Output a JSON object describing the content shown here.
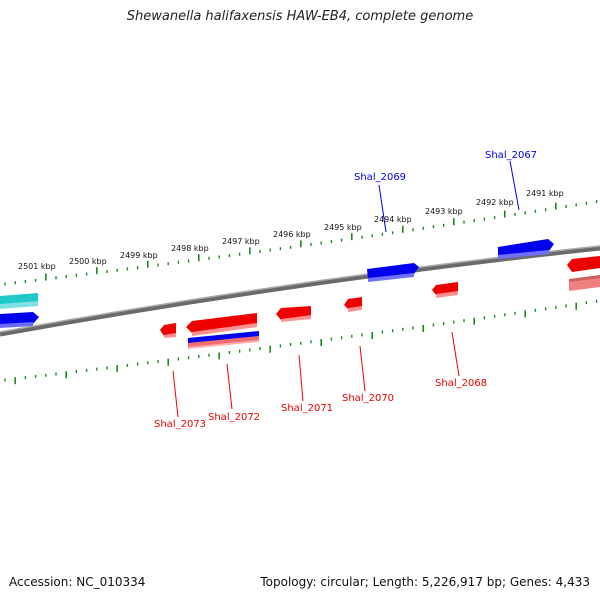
{
  "title": "Shewanella halifaxensis HAW-EB4, complete genome",
  "footer": {
    "accession": "Accession: NC_010334",
    "summary": "Topology: circular; Length: 5,226,917 bp; Genes: 4,433"
  },
  "colors": {
    "forward_gene": "#0000ff",
    "reverse_gene": "#ff0000",
    "reverse_gene_light": "#f08080",
    "rna_gene": "#20c8c8",
    "scale_ticks": "#1a8a1a",
    "backbone": "#808080"
  },
  "scale": {
    "unit": "kbp",
    "labels": [
      "2501 kbp",
      "2500 kbp",
      "2499 kbp",
      "2498 kbp",
      "2497 kbp",
      "2496 kbp",
      "2495 kbp",
      "2494 kbp",
      "2493 kbp",
      "2492 kbp",
      "2491 kbp"
    ]
  },
  "genes": {
    "forward": [
      "Shal_2069",
      "Shal_2067"
    ],
    "reverse": [
      "Shal_2073",
      "Shal_2072",
      "Shal_2071",
      "Shal_2070",
      "Shal_2068"
    ]
  }
}
